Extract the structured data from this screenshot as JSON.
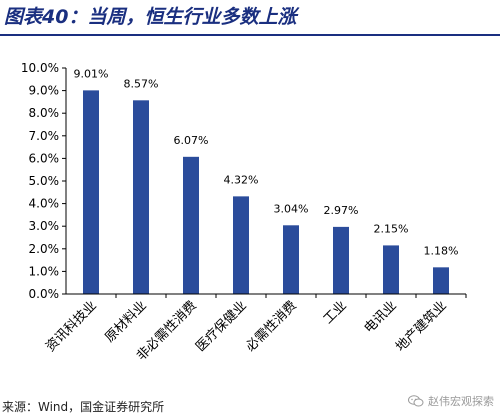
{
  "header": {
    "title": "图表40：当周，恒生行业多数上涨"
  },
  "footer": {
    "source": "来源：Wind，国金证券研究所",
    "watermark": "赵伟宏观探索"
  },
  "colors": {
    "bar": "#2b4c9b",
    "title": "#1a2f80",
    "axis": "#000000",
    "text": "#000000"
  },
  "icons": {
    "watermark": "wechat-icon"
  },
  "chart_data": {
    "type": "bar",
    "title": "",
    "xlabel": "",
    "ylabel": "",
    "categories": [
      "资讯科技业",
      "原材料业",
      "非必需性消费",
      "医疗保健业",
      "必需性消费",
      "工业",
      "电讯业",
      "地产建筑业"
    ],
    "values": [
      9.01,
      8.57,
      6.07,
      4.32,
      3.04,
      2.97,
      2.15,
      1.18
    ],
    "value_labels": [
      "9.01%",
      "8.57%",
      "6.07%",
      "4.32%",
      "3.04%",
      "2.97%",
      "2.15%",
      "1.18%"
    ],
    "ylim": [
      0,
      10
    ],
    "yticks": [
      0,
      1,
      2,
      3,
      4,
      5,
      6,
      7,
      8,
      9,
      10
    ],
    "ytick_labels": [
      "0.0%",
      "1.0%",
      "2.0%",
      "3.0%",
      "4.0%",
      "5.0%",
      "6.0%",
      "7.0%",
      "8.0%",
      "9.0%",
      "10.0%"
    ],
    "grid": false,
    "legend": "none"
  }
}
